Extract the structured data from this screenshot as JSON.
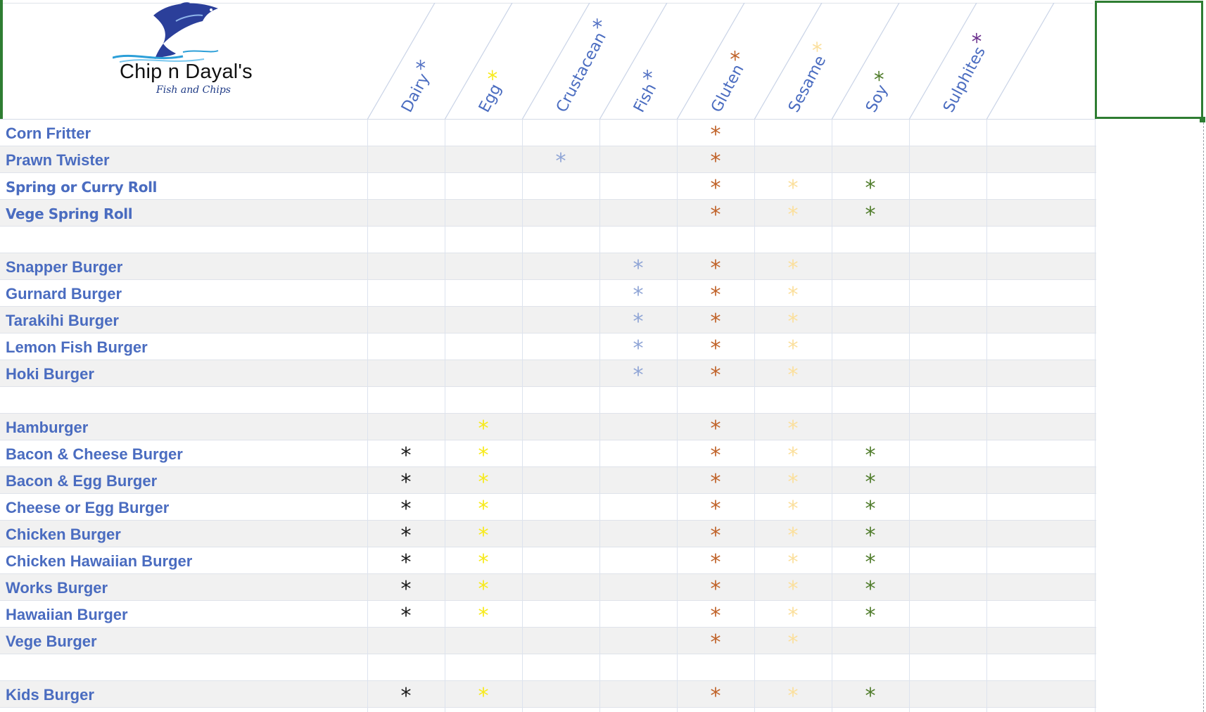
{
  "brand": {
    "name": "Chip n Dayal's",
    "tagline": "Fish and Chips",
    "logo_icon": "fish-logo-icon"
  },
  "colors": {
    "Dairy": "#1a1a1a",
    "Egg": "#f7ea1a",
    "Crustacean": "#8fa5d6",
    "Fish": "#8fa5d6",
    "Gluten": "#c0632a",
    "Sesame": "#fbdf9c",
    "Soy": "#4f7c2a",
    "Sulphites": "#6a2f8c"
  },
  "header_star_colors": {
    "Dairy": "#5573c4",
    "Egg": "#f7ea1a",
    "Crustacean": "#5573c4",
    "Fish": "#5573c4",
    "Gluten": "#c0632a",
    "Sesame": "#fbdf9c",
    "Soy": "#4f7c2a",
    "Sulphites": "#6a2f8c"
  },
  "allergen_symbol": "*",
  "allergens": [
    "Dairy",
    "Egg",
    "Crustacean",
    "Fish",
    "Gluten",
    "Sesame",
    "Soy",
    "Sulphites"
  ],
  "rows": [
    {
      "name": "Corn Fritter",
      "allergens": [
        "Gluten"
      ]
    },
    {
      "name": "Prawn Twister",
      "allergens": [
        "Crustacean",
        "Gluten"
      ]
    },
    {
      "name": "Spring or Curry Roll",
      "narrow": true,
      "allergens": [
        "Gluten",
        "Sesame",
        "Soy"
      ]
    },
    {
      "name": "Vege Spring Roll",
      "narrow": true,
      "allergens": [
        "Gluten",
        "Sesame",
        "Soy"
      ]
    },
    {
      "name": "",
      "allergens": []
    },
    {
      "name": "Snapper Burger",
      "allergens": [
        "Fish",
        "Gluten",
        "Sesame"
      ]
    },
    {
      "name": "Gurnard Burger",
      "allergens": [
        "Fish",
        "Gluten",
        "Sesame"
      ]
    },
    {
      "name": "Tarakihi Burger",
      "allergens": [
        "Fish",
        "Gluten",
        "Sesame"
      ]
    },
    {
      "name": "Lemon Fish Burger",
      "allergens": [
        "Fish",
        "Gluten",
        "Sesame"
      ]
    },
    {
      "name": "Hoki Burger",
      "allergens": [
        "Fish",
        "Gluten",
        "Sesame"
      ]
    },
    {
      "name": "",
      "allergens": []
    },
    {
      "name": "Hamburger",
      "allergens": [
        "Egg",
        "Gluten",
        "Sesame"
      ]
    },
    {
      "name": "Bacon & Cheese Burger",
      "allergens": [
        "Dairy",
        "Egg",
        "Gluten",
        "Sesame",
        "Soy"
      ]
    },
    {
      "name": "Bacon & Egg Burger",
      "allergens": [
        "Dairy",
        "Egg",
        "Gluten",
        "Sesame",
        "Soy"
      ]
    },
    {
      "name": "Cheese or Egg Burger",
      "allergens": [
        "Dairy",
        "Egg",
        "Gluten",
        "Sesame",
        "Soy"
      ]
    },
    {
      "name": "Chicken Burger",
      "allergens": [
        "Dairy",
        "Egg",
        "Gluten",
        "Sesame",
        "Soy"
      ]
    },
    {
      "name": "Chicken Hawaiian Burger",
      "allergens": [
        "Dairy",
        "Egg",
        "Gluten",
        "Sesame",
        "Soy"
      ]
    },
    {
      "name": "Works Burger",
      "allergens": [
        "Dairy",
        "Egg",
        "Gluten",
        "Sesame",
        "Soy"
      ]
    },
    {
      "name": "Hawaiian Burger",
      "allergens": [
        "Dairy",
        "Egg",
        "Gluten",
        "Sesame",
        "Soy"
      ]
    },
    {
      "name": "Vege Burger",
      "allergens": [
        "Gluten",
        "Sesame"
      ]
    },
    {
      "name": "",
      "allergens": []
    },
    {
      "name": "Kids Burger",
      "allergens": [
        "Dairy",
        "Egg",
        "Gluten",
        "Sesame",
        "Soy"
      ]
    }
  ]
}
